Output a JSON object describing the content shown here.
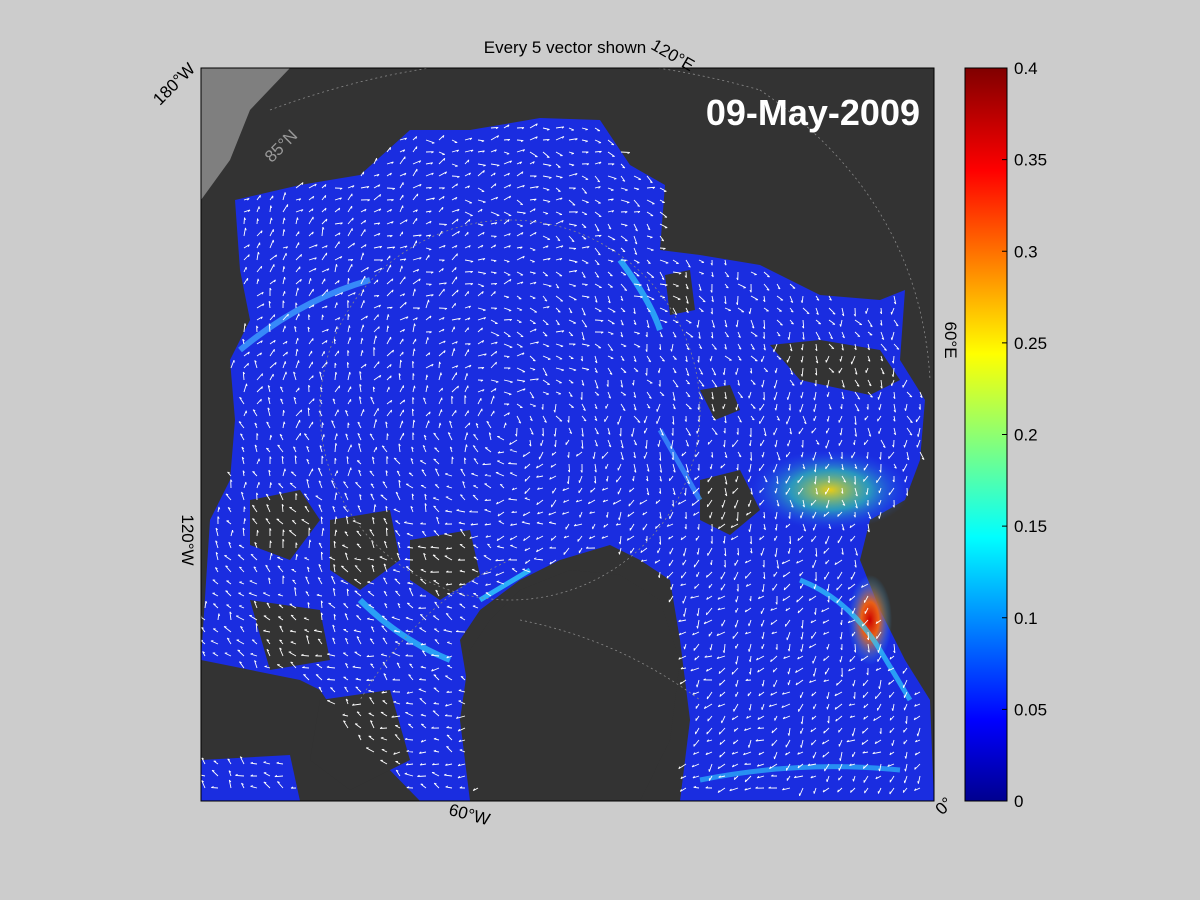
{
  "figure": {
    "title": "Every 5 vector shown",
    "date": "09-May-2009"
  },
  "map": {
    "type": "polar stereographic ice-drift map",
    "longitude_labels": [
      "180°W",
      "120°E",
      "60°E",
      "0°",
      "60°W",
      "120°W"
    ],
    "latitude_labels": [
      "85°N"
    ],
    "colors": {
      "background": "#cccccc",
      "land": "#333333",
      "coast": "#7f7f7f",
      "low_speed": "#1a2de0",
      "vector": "#ffffff"
    }
  },
  "chart_data": {
    "type": "heatmap",
    "colorbar": {
      "range": [
        0,
        0.4
      ],
      "ticks": [
        "0",
        "0.05",
        "0.1",
        "0.15",
        "0.2",
        "0.25",
        "0.3",
        "0.35",
        "0.4"
      ],
      "colormap": "jet"
    }
  }
}
